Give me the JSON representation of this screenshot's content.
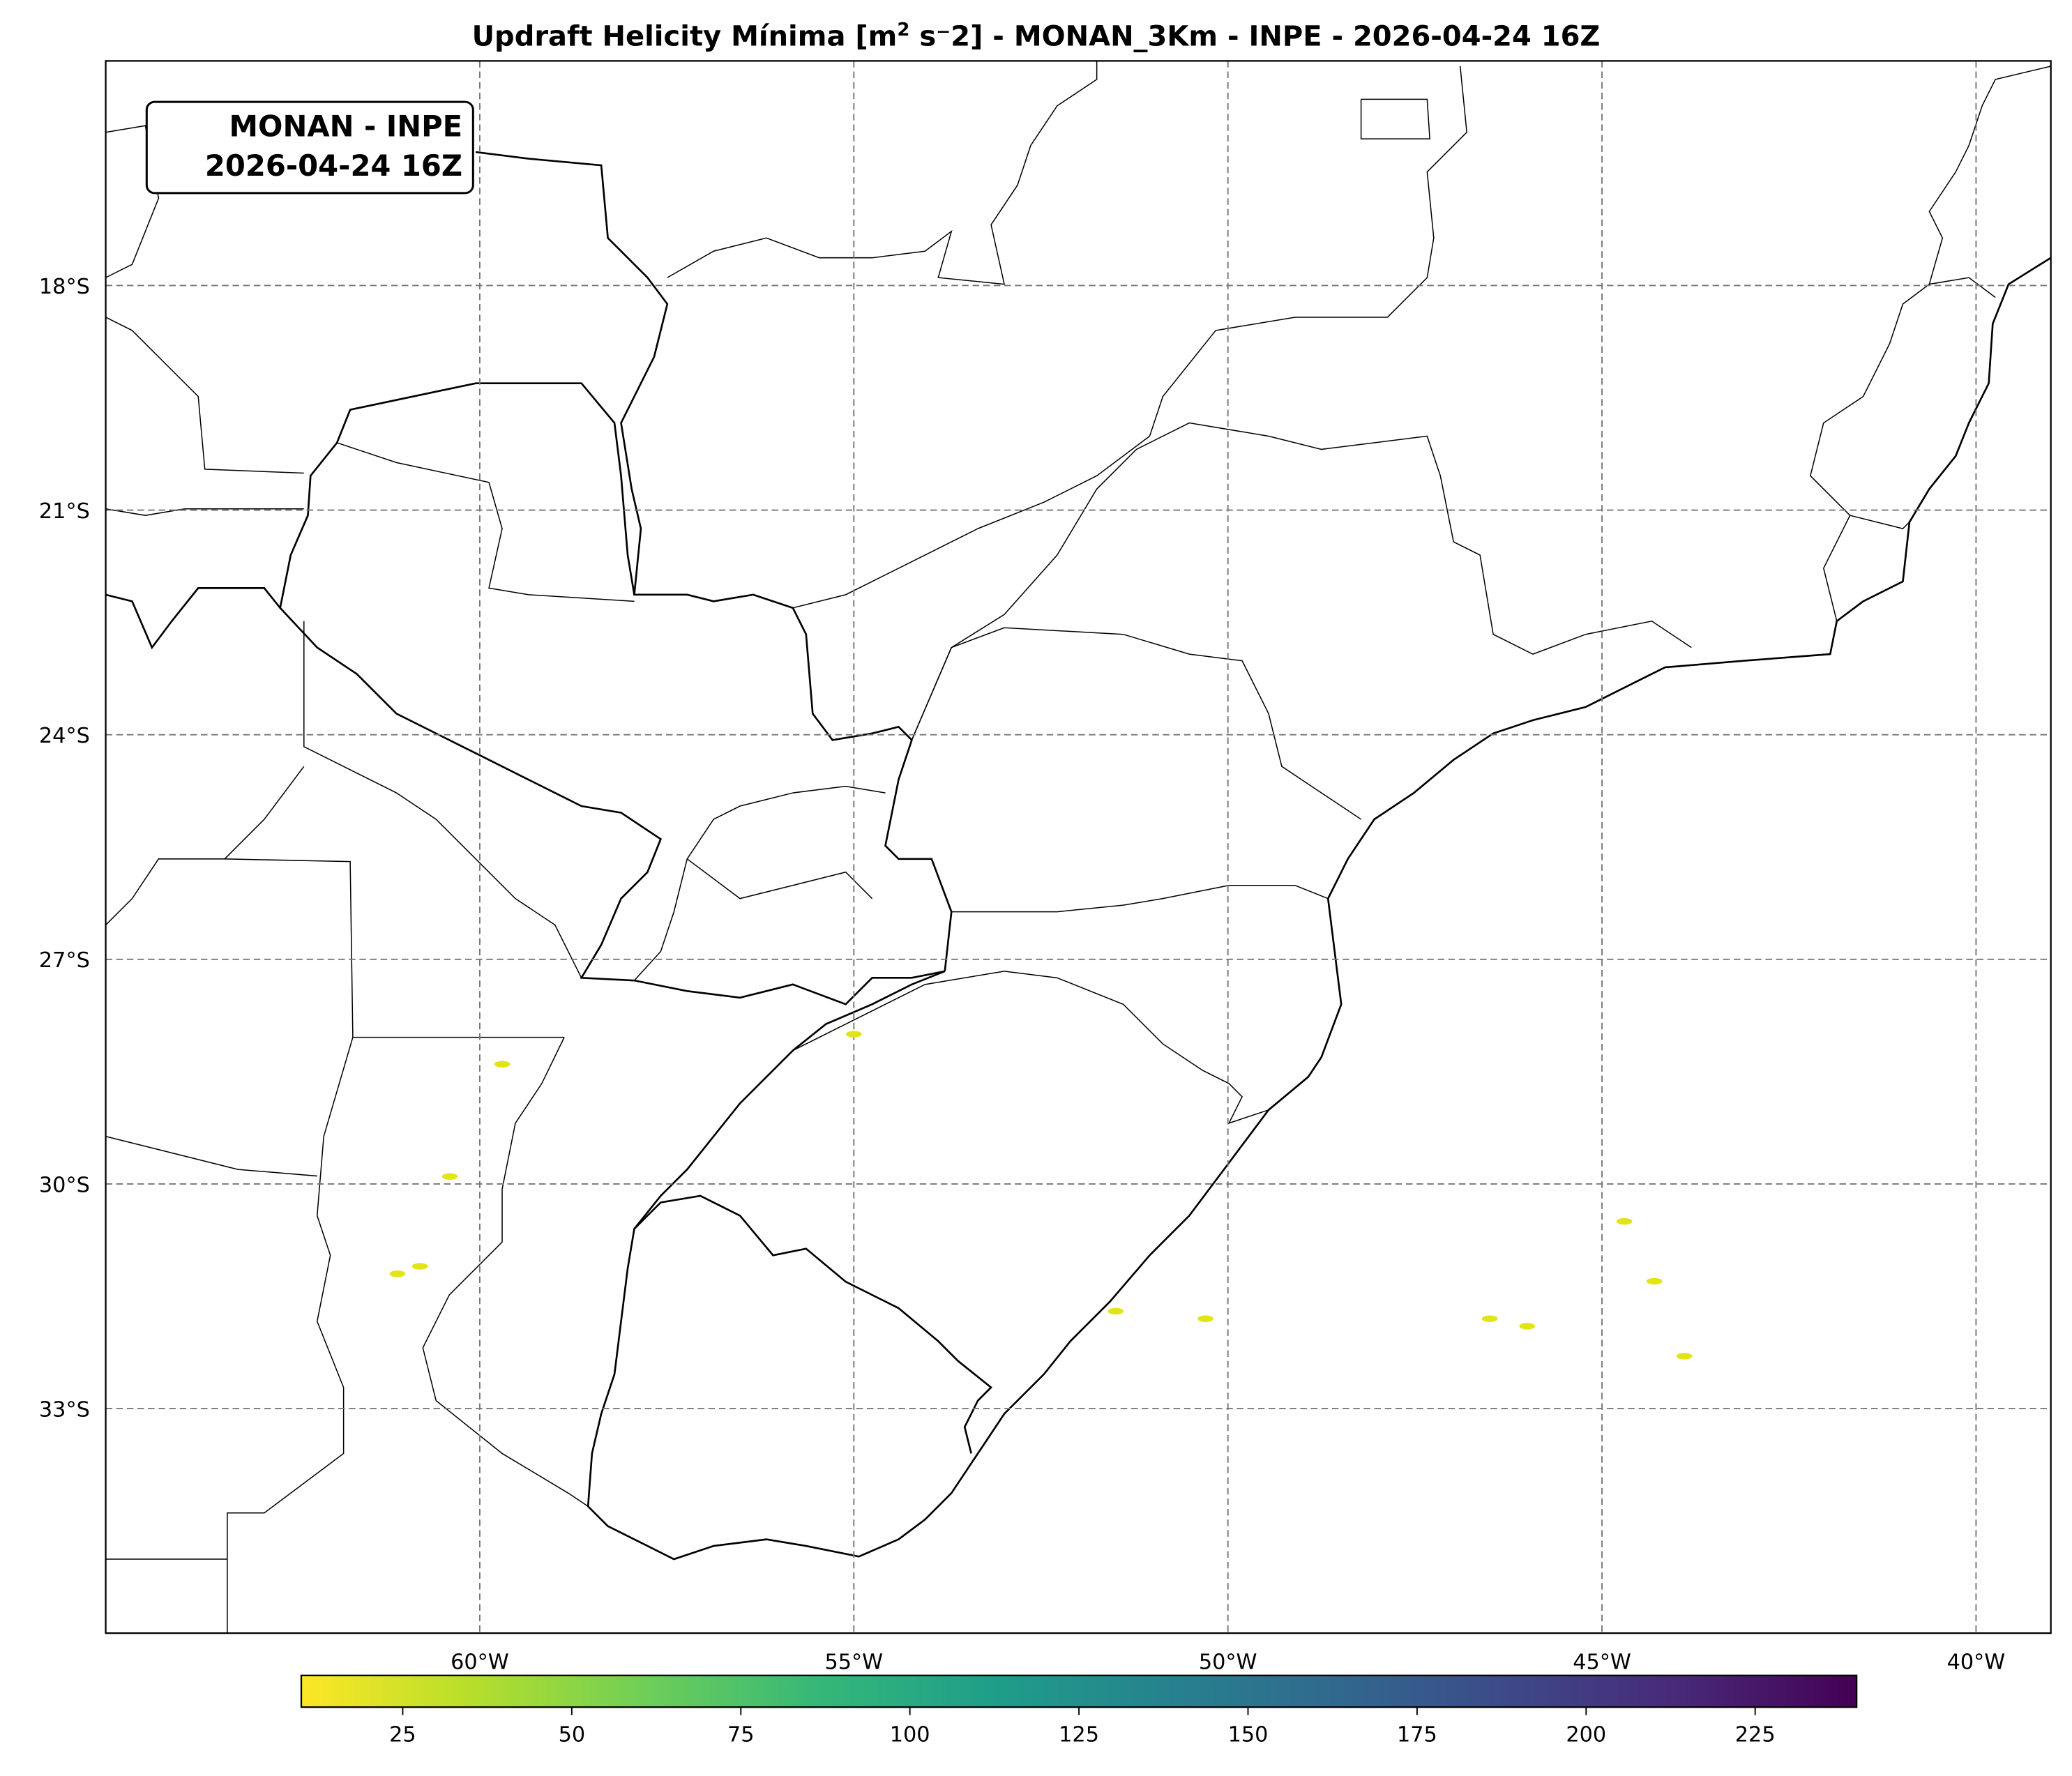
{
  "title": {
    "prefix": "Updraft Helicity Mínima [m",
    "sup": "2",
    "suffix": " s⁻2] - MONAN_3Km - INPE - 2026-04-24 16Z"
  },
  "annotation": {
    "line1": "MONAN - INPE",
    "line2": "2026-04-24 16Z"
  },
  "chart_data": {
    "type": "heatmap",
    "map_extent": {
      "lon": [
        -65,
        -39
      ],
      "lat": [
        -36,
        -15
      ]
    },
    "grid": true,
    "lat_ticks": [
      {
        "value": -18,
        "label": "18°S"
      },
      {
        "value": -21,
        "label": "21°S"
      },
      {
        "value": -24,
        "label": "24°S"
      },
      {
        "value": -27,
        "label": "27°S"
      },
      {
        "value": -30,
        "label": "30°S"
      },
      {
        "value": -33,
        "label": "33°S"
      }
    ],
    "lon_ticks": [
      {
        "value": -60,
        "label": "60°W"
      },
      {
        "value": -55,
        "label": "55°W"
      },
      {
        "value": -50,
        "label": "50°W"
      },
      {
        "value": -45,
        "label": "45°W"
      },
      {
        "value": -40,
        "label": "40°W"
      }
    ],
    "colorbar": {
      "colormap": "viridis_r",
      "range": [
        10,
        240
      ],
      "orientation": "horizontal",
      "placement": "bottom",
      "ticks": [
        25,
        50,
        75,
        100,
        125,
        150,
        175,
        200,
        225
      ],
      "colors": [
        "#fde725",
        "#b5de2b",
        "#6ece58",
        "#35b779",
        "#1f9e89",
        "#26828e",
        "#31688e",
        "#3e4989",
        "#482878",
        "#440154"
      ]
    },
    "features": [
      {
        "lon": -61.1,
        "lat": -31.2,
        "value": 15
      },
      {
        "lon": -60.8,
        "lat": -31.1,
        "value": 15
      },
      {
        "lon": -60.4,
        "lat": -29.9,
        "value": 12
      },
      {
        "lon": -59.7,
        "lat": -28.4,
        "value": 12
      },
      {
        "lon": -51.5,
        "lat": -31.7,
        "value": 15
      },
      {
        "lon": -50.3,
        "lat": -31.8,
        "value": 18
      },
      {
        "lon": -46.5,
        "lat": -31.8,
        "value": 15
      },
      {
        "lon": -46.0,
        "lat": -31.9,
        "value": 20
      },
      {
        "lon": -44.7,
        "lat": -30.5,
        "value": 15
      },
      {
        "lon": -44.3,
        "lat": -31.3,
        "value": 15
      },
      {
        "lon": -43.9,
        "lat": -32.3,
        "value": 12
      },
      {
        "lon": -55.0,
        "lat": -28.0,
        "value": 12
      }
    ]
  }
}
